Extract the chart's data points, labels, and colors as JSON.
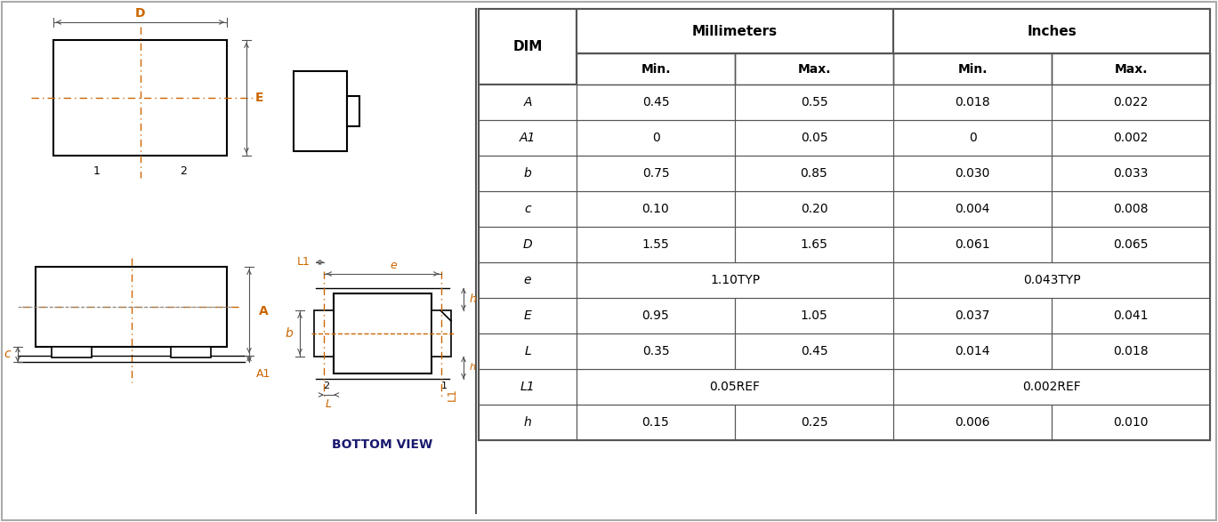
{
  "table_headers": [
    "DIM",
    "Millimeters",
    "",
    "Inches",
    ""
  ],
  "table_subheaders": [
    "",
    "Min.",
    "Max.",
    "Min.",
    "Max."
  ],
  "table_rows": [
    [
      "A",
      "0.45",
      "0.55",
      "0.018",
      "0.022"
    ],
    [
      "A1",
      "0",
      "0.05",
      "0",
      "0.002"
    ],
    [
      "b",
      "0.75",
      "0.85",
      "0.030",
      "0.033"
    ],
    [
      "c",
      "0.10",
      "0.20",
      "0.004",
      "0.008"
    ],
    [
      "D",
      "1.55",
      "1.65",
      "0.061",
      "0.065"
    ],
    [
      "e",
      "1.10TYP",
      "",
      "0.043TYP",
      ""
    ],
    [
      "E",
      "0.95",
      "1.05",
      "0.037",
      "0.041"
    ],
    [
      "L",
      "0.35",
      "0.45",
      "0.014",
      "0.018"
    ],
    [
      "L1",
      "0.05REF",
      "",
      "0.002REF",
      ""
    ],
    [
      "h",
      "0.15",
      "0.25",
      "0.006",
      "0.010"
    ]
  ],
  "header_bg": "#d4d4d4",
  "subheader_bg": "#e8e8e8",
  "border_color": "#555555",
  "dim_label_color": "#cc6600",
  "bottom_view_color": "#1a1a6e",
  "fig_bg": "#ffffff"
}
